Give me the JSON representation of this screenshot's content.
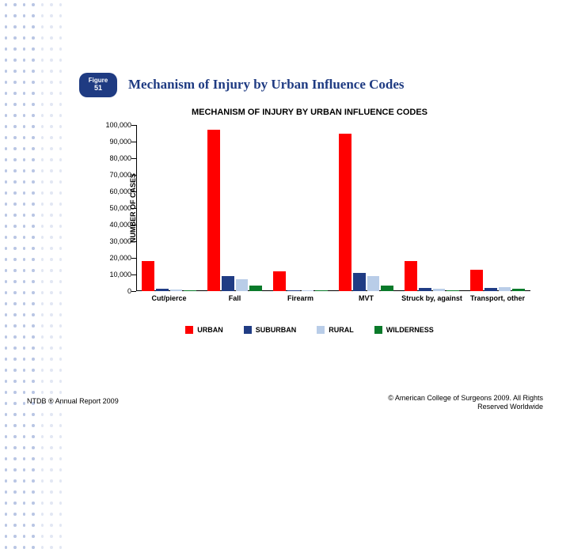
{
  "decor": {
    "dot_color_a": "#b9c6e4",
    "dot_color_b": "#e2e7f3",
    "row_gap": 10,
    "rows": 50,
    "cols": 7
  },
  "badge": {
    "line1": "Figure",
    "line2": "51"
  },
  "title": "Mechanism of Injury by Urban Influence Codes",
  "chart": {
    "type": "grouped-bar",
    "title": "MECHANISM OF INJURY BY URBAN INFLUENCE CODES",
    "y_label": "NUMBER OF CASES",
    "ylim": [
      0,
      100000
    ],
    "ytick_step": 10000,
    "y_ticks": [
      0,
      10000,
      20000,
      30000,
      40000,
      50000,
      60000,
      70000,
      80000,
      90000,
      100000
    ],
    "y_tick_labels": [
      "0",
      "10,000",
      "20,000",
      "30,000",
      "40,000",
      "50,000",
      "60,000",
      "70,000",
      "80,000",
      "90,000",
      "100,000"
    ],
    "categories": [
      "Cut/pierce",
      "Fall",
      "Firearm",
      "MVT",
      "Struck by, against",
      "Transport, other"
    ],
    "series": [
      {
        "name": "URBAN",
        "color": "#ff0000",
        "values": [
          18000,
          97000,
          12000,
          95000,
          18000,
          13000
        ]
      },
      {
        "name": "SUBURBAN",
        "color": "#203c84",
        "values": [
          1500,
          9000,
          700,
          11000,
          2000,
          2000
        ]
      },
      {
        "name": "RURAL",
        "color": "#b9cde8",
        "values": [
          1000,
          7000,
          600,
          9000,
          1500,
          2500
        ]
      },
      {
        "name": "WILDERNESS",
        "color": "#0a7a2a",
        "values": [
          300,
          3500,
          300,
          3500,
          600,
          1200
        ]
      }
    ],
    "background_color": "#ffffff",
    "axis_color": "#000000",
    "tick_fontsize": 9,
    "title_fontsize": 11,
    "label_fontsize": 9,
    "bar_gap": 2
  },
  "footer": {
    "left": "NTDB ® Annual Report 2009",
    "right": "© American College of Surgeons 2009. All Rights Reserved Worldwide"
  }
}
